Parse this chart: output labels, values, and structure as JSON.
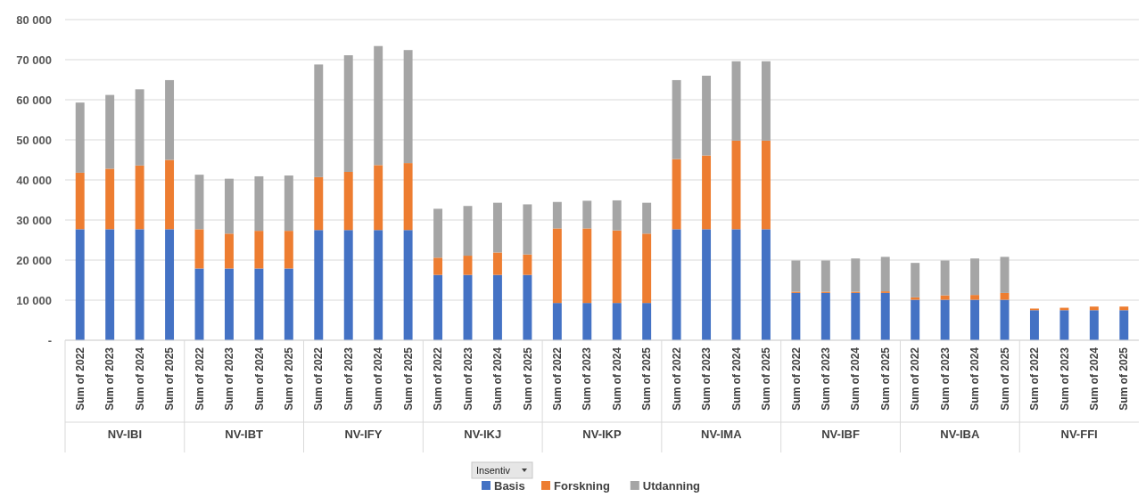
{
  "chart_data": {
    "type": "bar",
    "stacked": true,
    "legend": "bottom",
    "legend_title": "Insentiv",
    "grid": "y",
    "categories": [
      "Sum of 2022",
      "Sum of 2023",
      "Sum of 2024",
      "Sum of 2025",
      "Sum of 2022",
      "Sum of 2023",
      "Sum of 2024",
      "Sum of 2025",
      "Sum of 2022",
      "Sum of 2023",
      "Sum of 2024",
      "Sum of 2025",
      "Sum of 2022",
      "Sum of 2023",
      "Sum of 2024",
      "Sum of 2025",
      "Sum of 2022",
      "Sum of 2023",
      "Sum of 2024",
      "Sum of 2025",
      "Sum of 2022",
      "Sum of 2023",
      "Sum of 2024",
      "Sum of 2025",
      "Sum of 2022",
      "Sum of 2023",
      "Sum of 2024",
      "Sum of 2025",
      "Sum of 2022",
      "Sum of 2023",
      "Sum of 2024",
      "Sum of 2025",
      "Sum of 2022",
      "Sum of 2023",
      "Sum of 2024",
      "Sum of 2025"
    ],
    "annotations": [
      "NV-IBI",
      "NV-IBT",
      "NV-IFY",
      "NV-IKJ",
      "NV-IKP",
      "NV-IMA",
      "NV-IBF",
      "NV-IBA",
      "NV-FFI"
    ],
    "ylim": [
      0,
      80000
    ],
    "yticks": [
      {
        "value": 0,
        "label": "-"
      },
      {
        "value": 10000,
        "label": "10 000"
      },
      {
        "value": 20000,
        "label": "20 000"
      },
      {
        "value": 30000,
        "label": "30 000"
      },
      {
        "value": 40000,
        "label": "40 000"
      },
      {
        "value": 50000,
        "label": "50 000"
      },
      {
        "value": 60000,
        "label": "60 000"
      },
      {
        "value": 70000,
        "label": "70 000"
      },
      {
        "value": 80000,
        "label": "80 000"
      }
    ],
    "series": [
      {
        "name": "Basis",
        "color": "#4472c4",
        "values": [
          27700,
          27700,
          27700,
          27700,
          17900,
          17900,
          17900,
          17900,
          27500,
          27500,
          27500,
          27500,
          16300,
          16300,
          16300,
          16300,
          9300,
          9300,
          9300,
          9300,
          27700,
          27700,
          27700,
          27700,
          11800,
          11800,
          11800,
          11800,
          10100,
          10100,
          10100,
          10100,
          7500,
          7500,
          7500,
          7500
        ]
      },
      {
        "name": "Forskning",
        "color": "#ed7d31",
        "values": [
          14100,
          15100,
          15900,
          17300,
          9800,
          8700,
          9400,
          9400,
          13200,
          14500,
          16200,
          16700,
          4300,
          4800,
          5600,
          5100,
          18600,
          18600,
          18100,
          17300,
          17500,
          18400,
          22100,
          22100,
          300,
          300,
          300,
          400,
          600,
          1100,
          1200,
          1700,
          400,
          600,
          900,
          900
        ]
      },
      {
        "name": "Utdanning",
        "color": "#a5a5a5",
        "values": [
          17500,
          18400,
          19000,
          19900,
          13600,
          13700,
          13600,
          13800,
          28100,
          29100,
          29700,
          28200,
          12200,
          12400,
          12400,
          12500,
          6600,
          6900,
          7500,
          7700,
          19700,
          19900,
          19800,
          19800,
          7800,
          7800,
          8300,
          8600,
          8600,
          8700,
          9100,
          9000,
          0,
          0,
          0,
          0
        ]
      }
    ]
  }
}
